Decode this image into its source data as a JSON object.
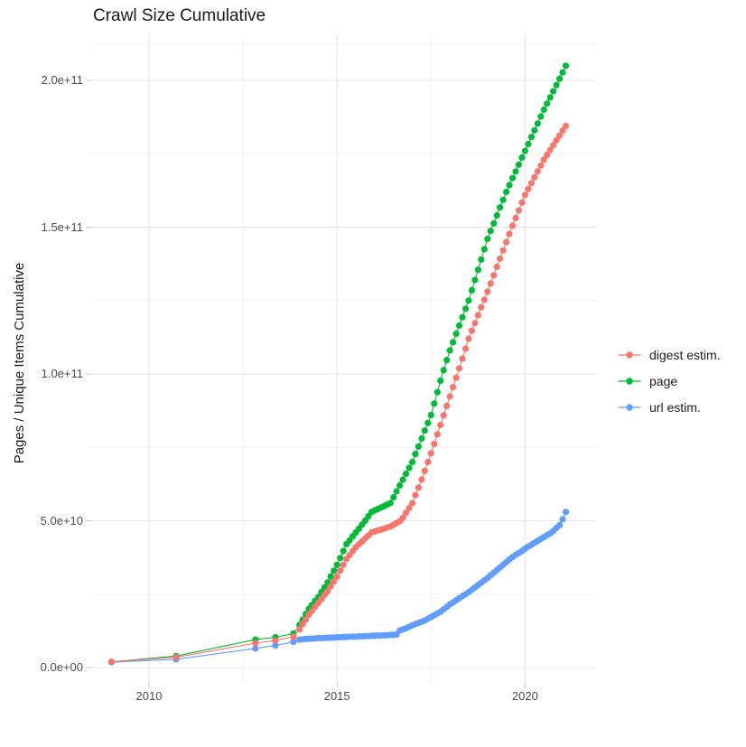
{
  "chart_data": {
    "type": "scatter",
    "title": "Crawl Size Cumulative",
    "xlabel": "",
    "ylabel": "Pages / Unique Items Cumulative",
    "unit_note": "point values are in units of 1e9 (billions); y axis shows scientific notation",
    "x_domain": [
      2008.56,
      2021.89
    ],
    "y_domain_e9": [
      -4.6,
      215.6
    ],
    "grid": true,
    "legend_position": "right",
    "x_ticks": [
      {
        "value": 2010,
        "label": "2010"
      },
      {
        "value": 2015,
        "label": "2015"
      },
      {
        "value": 2020,
        "label": "2020"
      }
    ],
    "x_minor_ticks": [
      2012.5,
      2017.5
    ],
    "y_ticks": [
      {
        "value_e9": 0,
        "label": "0.0e+00"
      },
      {
        "value_e9": 50,
        "label": "5.0e+10"
      },
      {
        "value_e9": 100,
        "label": "1.0e+11"
      },
      {
        "value_e9": 150,
        "label": "1.5e+11"
      },
      {
        "value_e9": 200,
        "label": "2.0e+11"
      }
    ],
    "y_minor_ticks_e9": [
      25,
      75,
      125,
      175,
      212.5
    ],
    "z_order": [
      2,
      1,
      0
    ],
    "series": [
      {
        "name": "digest estim.",
        "color": "#F8766D",
        "points_e9": [
          [
            2009.0,
            1.9
          ],
          [
            2010.72,
            3.5
          ],
          [
            2012.83,
            8.3
          ],
          [
            2013.36,
            9.2
          ],
          [
            2013.84,
            10.5
          ],
          [
            2014.0,
            13.0
          ],
          [
            2014.083,
            14.7
          ],
          [
            2014.167,
            16.3
          ],
          [
            2014.25,
            18.0
          ],
          [
            2014.333,
            19.3
          ],
          [
            2014.417,
            20.7
          ],
          [
            2014.5,
            22.0
          ],
          [
            2014.583,
            23.3
          ],
          [
            2014.667,
            24.7
          ],
          [
            2014.75,
            26.0
          ],
          [
            2014.833,
            27.7
          ],
          [
            2014.917,
            29.3
          ],
          [
            2015.0,
            31.0
          ],
          [
            2015.083,
            33.0
          ],
          [
            2015.167,
            35.0
          ],
          [
            2015.25,
            37.0
          ],
          [
            2015.333,
            38.3
          ],
          [
            2015.417,
            39.7
          ],
          [
            2015.5,
            41.0
          ],
          [
            2015.583,
            42.0
          ],
          [
            2015.667,
            43.0
          ],
          [
            2015.75,
            44.0
          ],
          [
            2015.833,
            45.0
          ],
          [
            2015.917,
            46.0
          ],
          [
            2016.0,
            46.3
          ],
          [
            2016.083,
            46.7
          ],
          [
            2016.167,
            47.0
          ],
          [
            2016.25,
            47.3
          ],
          [
            2016.333,
            47.7
          ],
          [
            2016.417,
            48.0
          ],
          [
            2016.5,
            48.6
          ],
          [
            2016.583,
            49.2
          ],
          [
            2016.667,
            49.8
          ],
          [
            2016.75,
            51.0
          ],
          [
            2016.833,
            52.7
          ],
          [
            2016.917,
            54.3
          ],
          [
            2017.0,
            56.0
          ],
          [
            2017.083,
            58.7
          ],
          [
            2017.167,
            61.3
          ],
          [
            2017.25,
            64.0
          ],
          [
            2017.333,
            67.0
          ],
          [
            2017.417,
            70.0
          ],
          [
            2017.5,
            73.0
          ],
          [
            2017.583,
            76.2
          ],
          [
            2017.667,
            79.4
          ],
          [
            2017.75,
            82.6
          ],
          [
            2017.833,
            85.9
          ],
          [
            2017.917,
            89.1
          ],
          [
            2018.0,
            92.3
          ],
          [
            2018.083,
            95.5
          ],
          [
            2018.167,
            98.7
          ],
          [
            2018.25,
            101.9
          ],
          [
            2018.333,
            105.2
          ],
          [
            2018.417,
            108.6
          ],
          [
            2018.5,
            112.0
          ],
          [
            2018.583,
            114.7
          ],
          [
            2018.667,
            117.3
          ],
          [
            2018.75,
            120.0
          ],
          [
            2018.833,
            122.7
          ],
          [
            2018.917,
            125.3
          ],
          [
            2019.0,
            128.0
          ],
          [
            2019.083,
            130.8
          ],
          [
            2019.167,
            133.6
          ],
          [
            2019.25,
            136.5
          ],
          [
            2019.333,
            139.3
          ],
          [
            2019.417,
            142.1
          ],
          [
            2019.5,
            144.9
          ],
          [
            2019.583,
            147.7
          ],
          [
            2019.667,
            150.5
          ],
          [
            2019.75,
            153.1
          ],
          [
            2019.833,
            155.7
          ],
          [
            2019.917,
            158.4
          ],
          [
            2020.0,
            161.0
          ],
          [
            2020.083,
            163.0
          ],
          [
            2020.167,
            165.0
          ],
          [
            2020.25,
            167.0
          ],
          [
            2020.333,
            169.0
          ],
          [
            2020.417,
            171.0
          ],
          [
            2020.5,
            173.0
          ],
          [
            2020.583,
            174.6
          ],
          [
            2020.667,
            176.3
          ],
          [
            2020.75,
            177.9
          ],
          [
            2020.833,
            179.6
          ],
          [
            2020.917,
            181.2
          ],
          [
            2021.0,
            182.9
          ],
          [
            2021.083,
            184.5
          ]
        ]
      },
      {
        "name": "page",
        "color": "#00BA38",
        "points_e9": [
          [
            2009.0,
            1.9
          ],
          [
            2010.72,
            3.9
          ],
          [
            2012.83,
            9.5
          ],
          [
            2013.36,
            10.3
          ],
          [
            2013.84,
            11.5
          ],
          [
            2014.0,
            14.5
          ],
          [
            2014.083,
            16.3
          ],
          [
            2014.167,
            18.2
          ],
          [
            2014.25,
            20.0
          ],
          [
            2014.333,
            21.3
          ],
          [
            2014.417,
            22.7
          ],
          [
            2014.5,
            24.0
          ],
          [
            2014.583,
            25.7
          ],
          [
            2014.667,
            27.3
          ],
          [
            2014.75,
            29.0
          ],
          [
            2014.833,
            31.0
          ],
          [
            2014.917,
            33.0
          ],
          [
            2015.0,
            35.0
          ],
          [
            2015.083,
            37.3
          ],
          [
            2015.167,
            39.7
          ],
          [
            2015.25,
            42.0
          ],
          [
            2015.333,
            43.3
          ],
          [
            2015.417,
            44.7
          ],
          [
            2015.5,
            46.0
          ],
          [
            2015.583,
            47.3
          ],
          [
            2015.667,
            48.7
          ],
          [
            2015.75,
            50.0
          ],
          [
            2015.833,
            51.5
          ],
          [
            2015.917,
            53.0
          ],
          [
            2016.0,
            53.5
          ],
          [
            2016.083,
            54.0
          ],
          [
            2016.167,
            54.5
          ],
          [
            2016.25,
            55.0
          ],
          [
            2016.333,
            55.5
          ],
          [
            2016.417,
            56.0
          ],
          [
            2016.5,
            58.0
          ],
          [
            2016.583,
            60.0
          ],
          [
            2016.667,
            62.0
          ],
          [
            2016.75,
            64.0
          ],
          [
            2016.833,
            66.0
          ],
          [
            2016.917,
            68.0
          ],
          [
            2017.0,
            70.0
          ],
          [
            2017.083,
            72.7
          ],
          [
            2017.167,
            75.3
          ],
          [
            2017.25,
            78.0
          ],
          [
            2017.333,
            80.7
          ],
          [
            2017.417,
            83.3
          ],
          [
            2017.5,
            86.0
          ],
          [
            2017.583,
            89.9
          ],
          [
            2017.667,
            93.8
          ],
          [
            2017.75,
            97.7
          ],
          [
            2017.833,
            101.3
          ],
          [
            2017.917,
            104.7
          ],
          [
            2018.0,
            108.0
          ],
          [
            2018.083,
            110.8
          ],
          [
            2018.167,
            113.7
          ],
          [
            2018.25,
            116.5
          ],
          [
            2018.333,
            119.3
          ],
          [
            2018.417,
            122.2
          ],
          [
            2018.5,
            125.0
          ],
          [
            2018.583,
            128.5
          ],
          [
            2018.667,
            132.0
          ],
          [
            2018.75,
            135.5
          ],
          [
            2018.833,
            139.0
          ],
          [
            2018.917,
            142.5
          ],
          [
            2019.0,
            146.0
          ],
          [
            2019.083,
            148.7
          ],
          [
            2019.167,
            151.3
          ],
          [
            2019.25,
            154.0
          ],
          [
            2019.333,
            156.7
          ],
          [
            2019.417,
            159.3
          ],
          [
            2019.5,
            162.0
          ],
          [
            2019.583,
            164.3
          ],
          [
            2019.667,
            166.7
          ],
          [
            2019.75,
            169.0
          ],
          [
            2019.833,
            171.3
          ],
          [
            2019.917,
            173.7
          ],
          [
            2020.0,
            176.0
          ],
          [
            2020.083,
            178.3
          ],
          [
            2020.167,
            180.7
          ],
          [
            2020.25,
            183.0
          ],
          [
            2020.333,
            185.3
          ],
          [
            2020.417,
            187.7
          ],
          [
            2020.5,
            190.0
          ],
          [
            2020.583,
            192.1
          ],
          [
            2020.667,
            194.2
          ],
          [
            2020.75,
            196.3
          ],
          [
            2020.833,
            198.4
          ],
          [
            2020.917,
            200.6
          ],
          [
            2021.0,
            202.7
          ],
          [
            2021.083,
            205.0
          ]
        ]
      },
      {
        "name": "url estim.",
        "color": "#619CFF",
        "points_e9": [
          [
            2009.0,
            1.8
          ],
          [
            2010.72,
            2.8
          ],
          [
            2012.83,
            6.5
          ],
          [
            2013.36,
            7.5
          ],
          [
            2013.84,
            8.7
          ],
          [
            2014.0,
            9.5
          ],
          [
            2014.083,
            9.6
          ],
          [
            2014.167,
            9.7
          ],
          [
            2014.25,
            9.8
          ],
          [
            2014.333,
            9.8
          ],
          [
            2014.417,
            9.9
          ],
          [
            2014.5,
            10.0
          ],
          [
            2014.583,
            10.0
          ],
          [
            2014.667,
            10.1
          ],
          [
            2014.75,
            10.1
          ],
          [
            2014.833,
            10.2
          ],
          [
            2014.917,
            10.2
          ],
          [
            2015.0,
            10.3
          ],
          [
            2015.083,
            10.3
          ],
          [
            2015.167,
            10.4
          ],
          [
            2015.25,
            10.4
          ],
          [
            2015.333,
            10.5
          ],
          [
            2015.417,
            10.5
          ],
          [
            2015.5,
            10.5
          ],
          [
            2015.583,
            10.6
          ],
          [
            2015.667,
            10.6
          ],
          [
            2015.75,
            10.7
          ],
          [
            2015.833,
            10.7
          ],
          [
            2015.917,
            10.8
          ],
          [
            2016.0,
            10.8
          ],
          [
            2016.083,
            10.9
          ],
          [
            2016.167,
            10.9
          ],
          [
            2016.25,
            11.0
          ],
          [
            2016.333,
            11.0
          ],
          [
            2016.417,
            11.1
          ],
          [
            2016.5,
            11.1
          ],
          [
            2016.583,
            11.2
          ],
          [
            2016.667,
            12.6
          ],
          [
            2016.75,
            13.0
          ],
          [
            2016.833,
            13.4
          ],
          [
            2016.917,
            13.9
          ],
          [
            2017.0,
            14.3
          ],
          [
            2017.083,
            14.8
          ],
          [
            2017.167,
            15.2
          ],
          [
            2017.25,
            15.6
          ],
          [
            2017.333,
            16.0
          ],
          [
            2017.417,
            16.6
          ],
          [
            2017.5,
            17.2
          ],
          [
            2017.583,
            17.8
          ],
          [
            2017.667,
            18.4
          ],
          [
            2017.75,
            19.0
          ],
          [
            2017.833,
            19.8
          ],
          [
            2017.917,
            20.6
          ],
          [
            2018.0,
            21.5
          ],
          [
            2018.083,
            22.2
          ],
          [
            2018.167,
            22.9
          ],
          [
            2018.25,
            23.6
          ],
          [
            2018.333,
            24.3
          ],
          [
            2018.417,
            25.0
          ],
          [
            2018.5,
            25.7
          ],
          [
            2018.583,
            26.5
          ],
          [
            2018.667,
            27.3
          ],
          [
            2018.75,
            28.1
          ],
          [
            2018.833,
            28.9
          ],
          [
            2018.917,
            29.7
          ],
          [
            2019.0,
            30.5
          ],
          [
            2019.083,
            31.4
          ],
          [
            2019.167,
            32.3
          ],
          [
            2019.25,
            33.2
          ],
          [
            2019.333,
            34.1
          ],
          [
            2019.417,
            35.0
          ],
          [
            2019.5,
            35.9
          ],
          [
            2019.583,
            36.8
          ],
          [
            2019.667,
            37.6
          ],
          [
            2019.75,
            38.4
          ],
          [
            2019.833,
            39.0
          ],
          [
            2019.917,
            39.7
          ],
          [
            2020.0,
            40.5
          ],
          [
            2020.083,
            41.2
          ],
          [
            2020.167,
            41.8
          ],
          [
            2020.25,
            42.5
          ],
          [
            2020.333,
            43.1
          ],
          [
            2020.417,
            43.8
          ],
          [
            2020.5,
            44.4
          ],
          [
            2020.583,
            45.1
          ],
          [
            2020.667,
            45.7
          ],
          [
            2020.75,
            46.5
          ],
          [
            2020.833,
            47.5
          ],
          [
            2020.917,
            48.5
          ],
          [
            2021.0,
            50.5
          ],
          [
            2021.083,
            53.0
          ]
        ]
      }
    ]
  },
  "colors": {
    "background": "#ffffff",
    "grid_major": "#e7e7e7",
    "grid_minor": "#f2f2f2",
    "axis_tick_mark": "#c4c4c4",
    "axis_text": "#4d4d4d",
    "title_text": "#1a1a1a"
  }
}
